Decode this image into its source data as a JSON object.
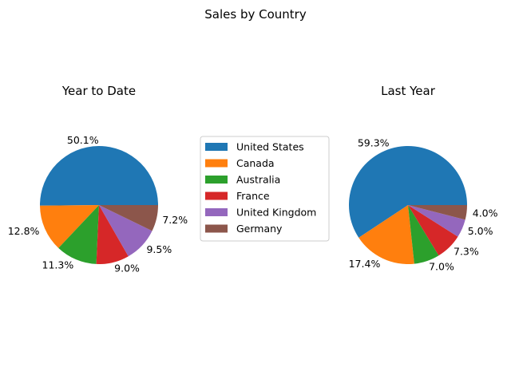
{
  "chart_data": {
    "type": "pie",
    "title": "Sales by Country",
    "legend_position": "center",
    "legend": [
      "United States",
      "Canada",
      "Australia",
      "France",
      "United Kingdom",
      "Germany"
    ],
    "colors": [
      "#1f77b4",
      "#ff7f0e",
      "#2ca02c",
      "#d62728",
      "#9467bd",
      "#8c564b"
    ],
    "charts": [
      {
        "title": "Year to Date",
        "values": [
          50.1,
          12.8,
          11.3,
          9.0,
          9.5,
          7.2
        ],
        "labels": [
          "50.1%",
          "12.8%",
          "11.3%",
          "9.0%",
          "9.5%",
          "7.2%"
        ]
      },
      {
        "title": "Last Year",
        "values": [
          59.3,
          17.4,
          7.0,
          7.3,
          5.0,
          4.0
        ],
        "labels": [
          "59.3%",
          "17.4%",
          "7.0%",
          "7.3%",
          "5.0%",
          "4.0%"
        ]
      }
    ]
  }
}
